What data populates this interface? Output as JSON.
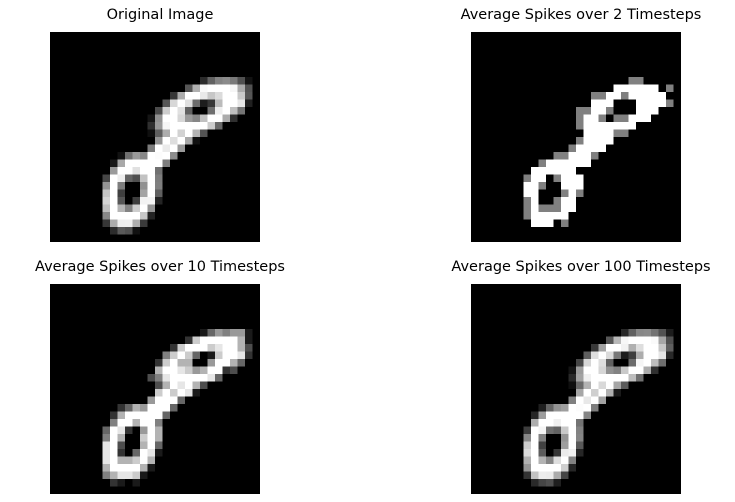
{
  "figure": {
    "panels": [
      {
        "title": "Original Image",
        "variant": "original"
      },
      {
        "title": "Average Spikes over 2 Timesteps",
        "variant": "t2"
      },
      {
        "title": "Average Spikes over 10 Timesteps",
        "variant": "t10"
      },
      {
        "title": "Average Spikes over 100 Timesteps",
        "variant": "t100"
      }
    ],
    "colormap": "gray",
    "background_color": "#000000",
    "ink_color": "#ffffff"
  }
}
